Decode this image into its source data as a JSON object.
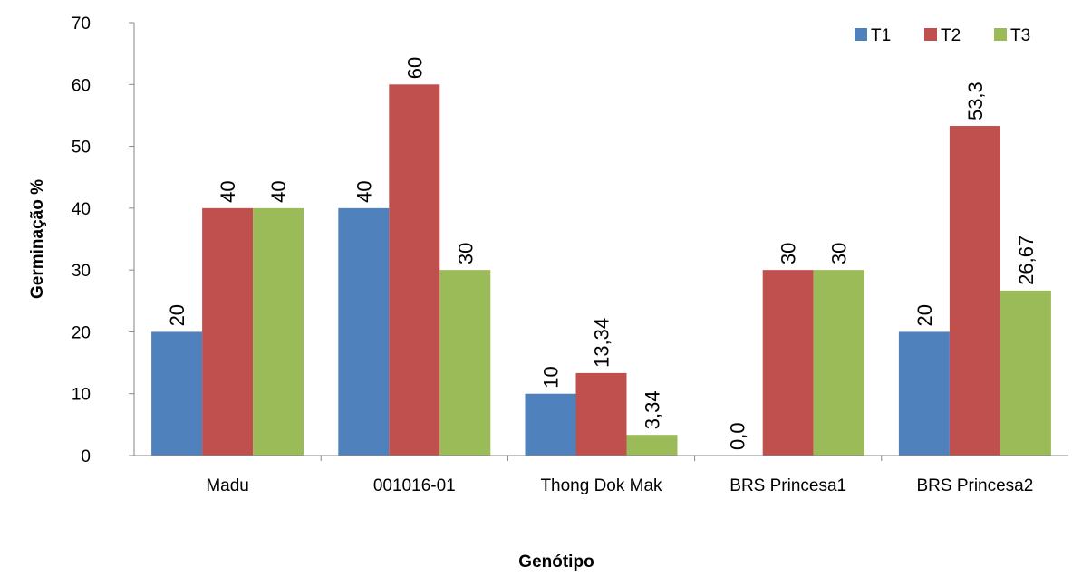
{
  "chart_data": {
    "type": "bar",
    "title": "",
    "xlabel": "Genótipo",
    "ylabel": "Germinação %",
    "ylim": [
      0,
      70
    ],
    "yticks": [
      "0",
      "10",
      "20",
      "30",
      "40",
      "50",
      "60",
      "70"
    ],
    "grid": false,
    "legend_position": "top-right",
    "categories": [
      "Madu",
      "001016-01",
      "Thong Dok Mak",
      "BRS Princesa1",
      "BRS Princesa2"
    ],
    "series": [
      {
        "name": "T1",
        "color": "#4F81BD",
        "values": [
          20,
          40,
          10,
          0,
          20
        ],
        "labels": [
          "20",
          "40",
          "10",
          "0,0",
          "20"
        ]
      },
      {
        "name": "T2",
        "color": "#C0504D",
        "values": [
          40,
          60,
          13.34,
          30,
          53.3
        ],
        "labels": [
          "40",
          "60",
          "13,34",
          "30",
          "53,3"
        ]
      },
      {
        "name": "T3",
        "color": "#9BBB59",
        "values": [
          40,
          30,
          3.34,
          30,
          26.67
        ],
        "labels": [
          "40",
          "30",
          "3,34",
          "30",
          "26,67"
        ]
      }
    ]
  }
}
